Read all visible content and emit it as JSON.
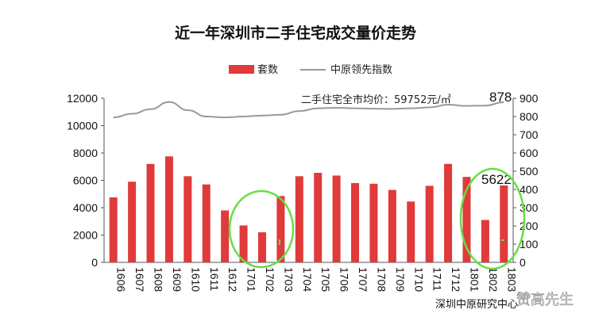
{
  "chart_data": {
    "type": "bar",
    "title": "近一年深圳市二手住宅成交量价走势",
    "categories": [
      "1606",
      "1607",
      "1608",
      "1609",
      "1610",
      "1611",
      "1612",
      "1701",
      "1702",
      "1703",
      "1704",
      "1705",
      "1706",
      "1707",
      "1708",
      "1709",
      "1710",
      "1711",
      "1712",
      "1801",
      "1802",
      "1803"
    ],
    "series": [
      {
        "name": "套数",
        "type": "bar",
        "axis": "left",
        "color": "#e03a3a",
        "values": [
          4750,
          5900,
          7200,
          7750,
          6300,
          5700,
          3800,
          2700,
          2200,
          4850,
          6300,
          6550,
          6350,
          5800,
          5750,
          5300,
          4450,
          5600,
          7200,
          6250,
          3100,
          5622
        ]
      },
      {
        "name": "中原领先指数",
        "type": "line",
        "axis": "right",
        "color": "#999999",
        "values": [
          795,
          815,
          840,
          880,
          835,
          800,
          795,
          800,
          805,
          810,
          830,
          845,
          848,
          845,
          843,
          842,
          845,
          850,
          865,
          858,
          860,
          878
        ]
      }
    ],
    "ylim_left": [
      0,
      12000
    ],
    "yticks_left": [
      "0",
      "2000",
      "4000",
      "6000",
      "8000",
      "10000",
      "12000"
    ],
    "ylim_right": [
      0,
      900
    ],
    "yticks_right": [
      "0",
      "100",
      "200",
      "300",
      "400",
      "500",
      "600",
      "700",
      "800",
      "900"
    ],
    "annotations": {
      "avg_price": "二手住宅全市均价：59752元/㎡",
      "last_index": "878",
      "last_volume": "5622"
    },
    "legend": "top-center",
    "grid": false
  },
  "source": "深圳中原研究中心",
  "watermark": "赞高先生",
  "colors": {
    "bar": "#e03a3a",
    "line": "#999999",
    "highlight": "#66dd44"
  }
}
